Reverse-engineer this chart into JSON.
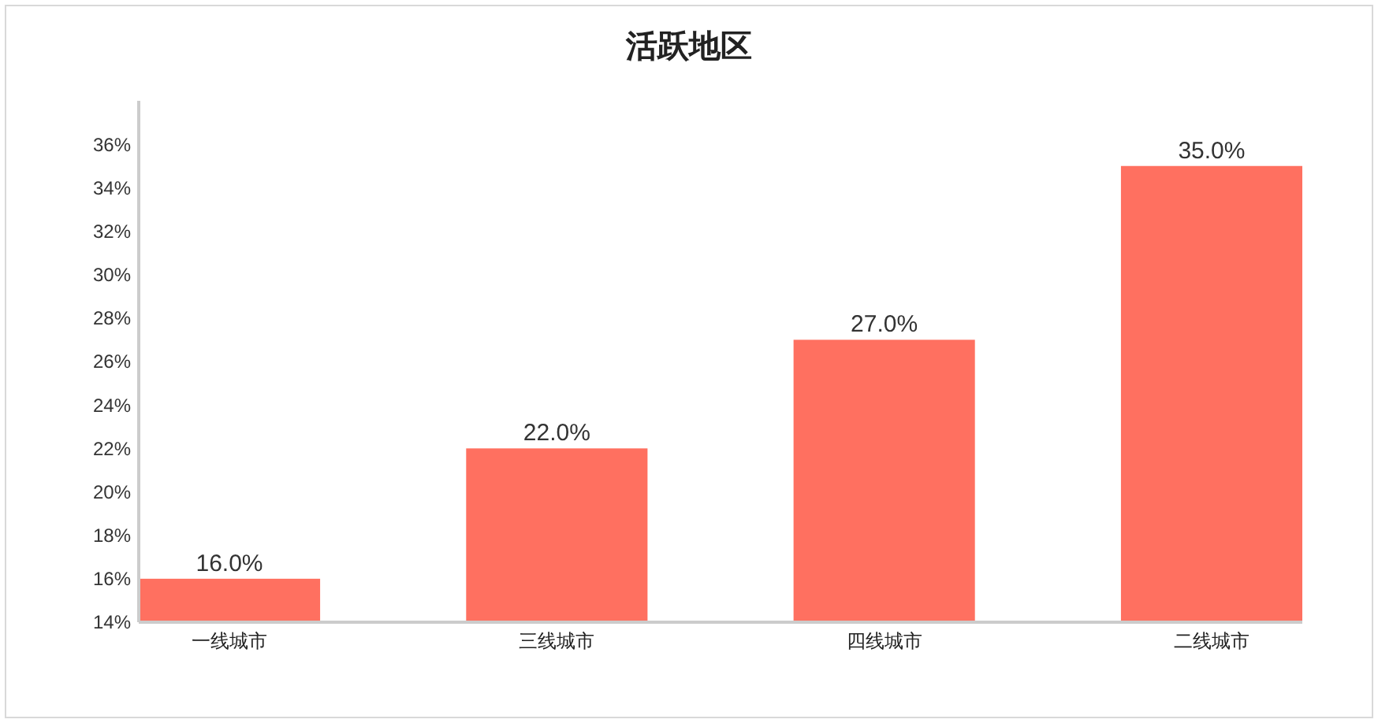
{
  "chart_data": {
    "type": "bar",
    "title": "活跃地区",
    "categories": [
      "一线城市",
      "三线城市",
      "四线城市",
      "二线城市"
    ],
    "values": [
      16,
      22,
      27,
      35
    ],
    "color": "#ff7060",
    "value_labels": [
      "16.0%",
      "22.0%",
      "27.0%",
      "35.0%"
    ],
    "ylim": [
      14,
      38
    ],
    "yticks": [
      {
        "value": 14,
        "label": "14%"
      },
      {
        "value": 16,
        "label": "16%"
      },
      {
        "value": 18,
        "label": "18%"
      },
      {
        "value": 20,
        "label": "20%"
      },
      {
        "value": 22,
        "label": "22%"
      },
      {
        "value": 24,
        "label": "24%"
      },
      {
        "value": 26,
        "label": "26%"
      },
      {
        "value": 28,
        "label": "28%"
      },
      {
        "value": 30,
        "label": "30%"
      },
      {
        "value": 32,
        "label": "32%"
      },
      {
        "value": 34,
        "label": "34%"
      },
      {
        "value": 36,
        "label": "36%"
      }
    ],
    "grid": false
  }
}
